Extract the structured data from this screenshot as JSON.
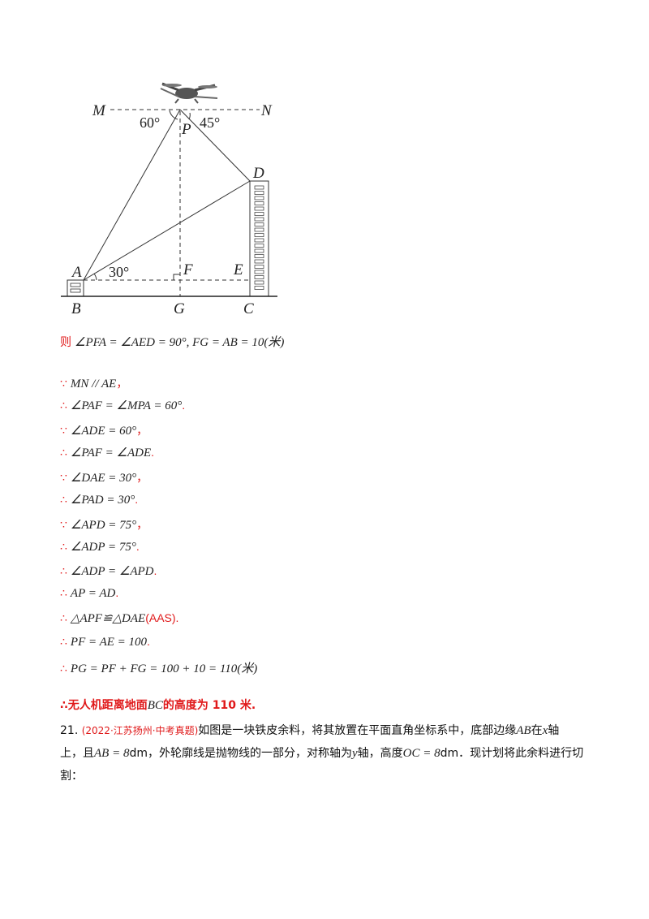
{
  "figure": {
    "labels": {
      "M": "M",
      "N": "N",
      "P": "P",
      "D": "D",
      "A": "A",
      "F": "F",
      "E": "E",
      "B": "B",
      "G": "G",
      "C": "C"
    },
    "angles": {
      "mpa": "60°",
      "npd": "45°",
      "dae": "30°"
    }
  },
  "steps": [
    {
      "prefix": "则",
      "math": "∠PFA = ∠AED = 90°, FG = AB = 10(米)",
      "suffix": ""
    },
    {
      "prefix": "∵",
      "math": "MN // AE",
      "suffix": "，"
    },
    {
      "prefix": "∴",
      "math": "∠PAF = ∠MPA = 60°",
      "suffix": "."
    },
    {
      "prefix": "∵",
      "math": "∠ADE = 60°",
      "suffix": "，"
    },
    {
      "prefix": "∴",
      "math": "∠PAF = ∠ADE",
      "suffix": "."
    },
    {
      "prefix": "∵",
      "math": "∠DAE = 30°",
      "suffix": "，"
    },
    {
      "prefix": "∴",
      "math": "∠PAD = 30°",
      "suffix": "."
    },
    {
      "prefix": "∵",
      "math": "∠APD = 75°",
      "suffix": "，"
    },
    {
      "prefix": "∴",
      "math": "∠ADP = 75°",
      "suffix": "."
    },
    {
      "prefix": "∴",
      "math": "∠ADP = ∠APD",
      "suffix": "."
    },
    {
      "prefix": "∴",
      "math": "AP = AD",
      "suffix": "."
    },
    {
      "prefix": "∴",
      "math": "△APF≌△DAE",
      "suffix": "(AAS)."
    },
    {
      "prefix": "∴",
      "math": "PF = AE = 100",
      "suffix": "."
    },
    {
      "prefix": "∴",
      "math": "PG = PF + FG = 100 + 10 = 110(米)",
      "suffix": ""
    }
  ],
  "conclusion": {
    "prefix": "∴无人机距离地面",
    "math": "BC",
    "suffix": "的高度为 110 米."
  },
  "problem": {
    "number": "21.",
    "tag": "(2022·江苏扬州·中考真题)",
    "t1": "如图是一块铁皮余料，将其放置在平面直角坐标系中，底部边缘",
    "m1": "AB",
    "t2": "在",
    "m2": "x",
    "t3": "轴",
    "t4": "上，且",
    "m3": "AB = 8",
    "t5": "dm，外轮廓线是抛物线的一部分，对称轴为",
    "m4": "y",
    "t6": "轴，高度",
    "m5": "OC = 8",
    "t7": "dm．现计划将此余料进行切",
    "t8": "割："
  }
}
